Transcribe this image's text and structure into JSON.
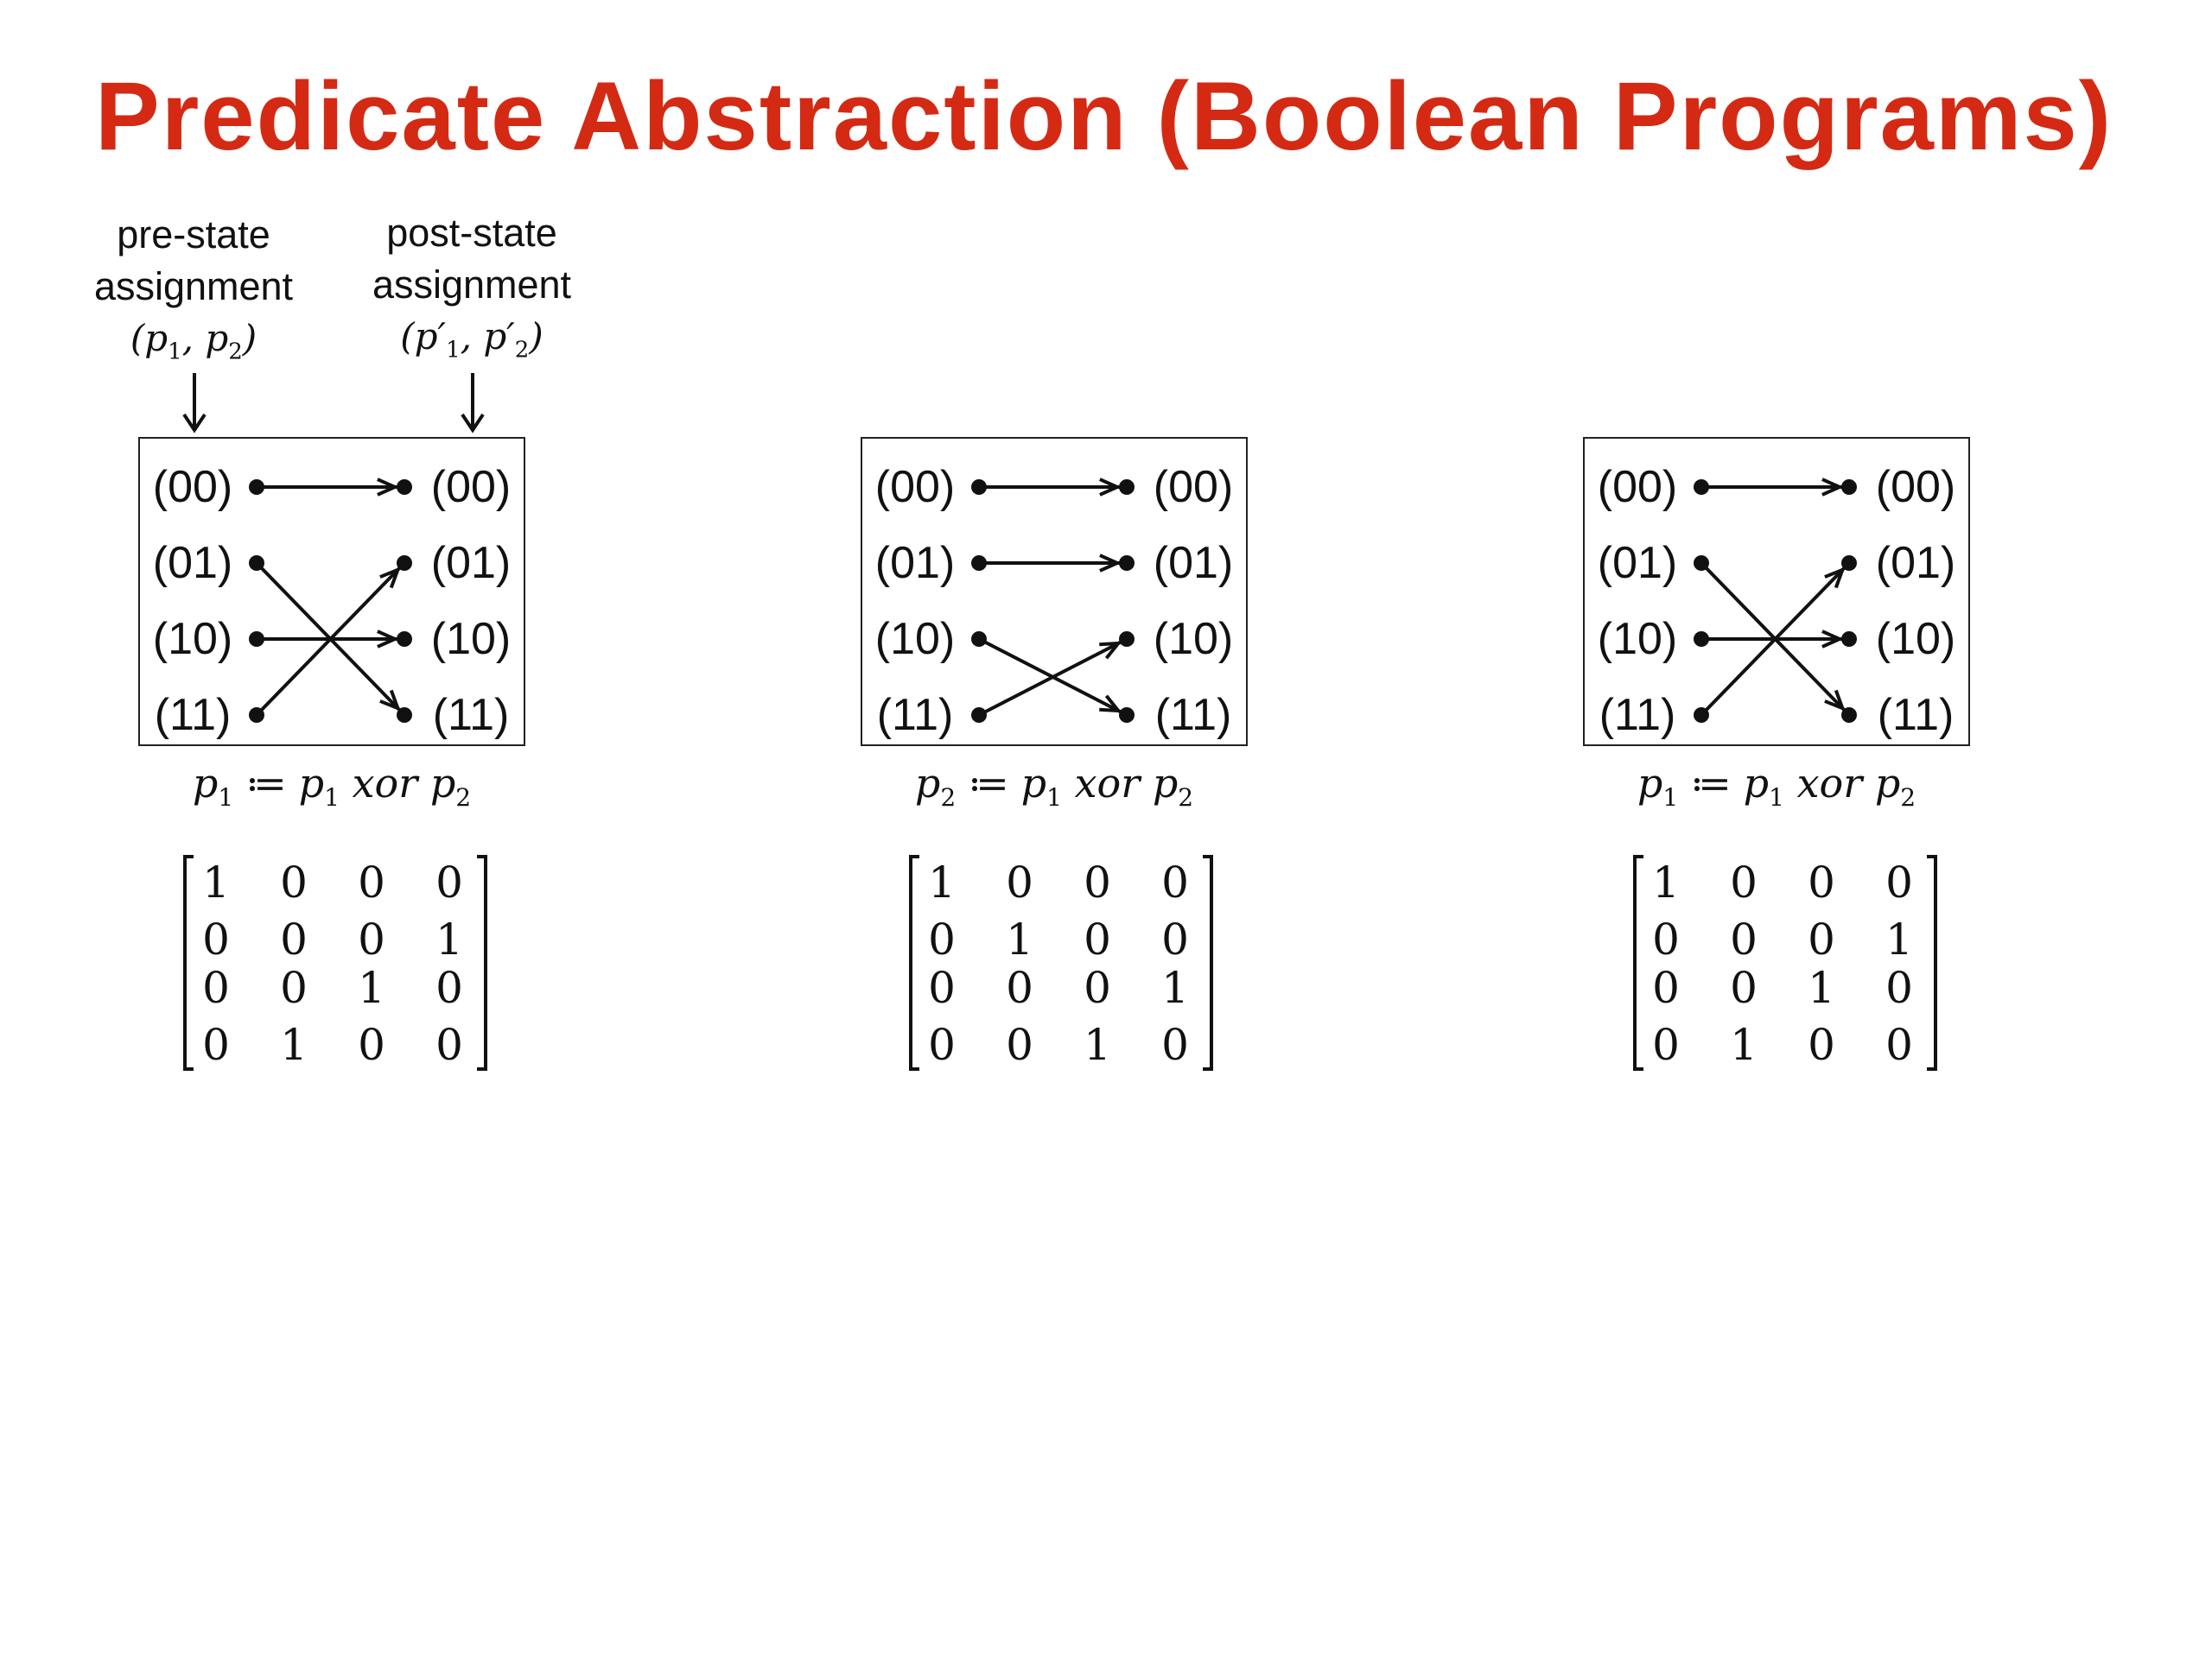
{
  "title": "Predicate Abstraction (Boolean Programs)",
  "header": {
    "pre_label": "pre-state\nassignment",
    "pre_vars": {
      "v1": "p",
      "s1": "1",
      "v2": "p",
      "s2": "2"
    },
    "post_label": "post-state\nassignment",
    "post_vars": {
      "v1": "p′",
      "s1": "1",
      "v2": "p′",
      "s2": "2"
    }
  },
  "panels": [
    {
      "states_left": [
        "(00)",
        "(01)",
        "(10)",
        "(11)"
      ],
      "states_right": [
        "(00)",
        "(01)",
        "(10)",
        "(11)"
      ],
      "transitions": [
        [
          0,
          0
        ],
        [
          1,
          3
        ],
        [
          2,
          2
        ],
        [
          3,
          1
        ]
      ],
      "equation": {
        "lhs": "p",
        "lhs_sub": "1",
        "op": "≔",
        "a": "p",
        "a_sub": "1",
        "fn": "xor",
        "b": "p",
        "b_sub": "2"
      },
      "matrix": [
        [
          "1",
          "0",
          "0",
          "0"
        ],
        [
          "0",
          "0",
          "0",
          "1"
        ],
        [
          "0",
          "0",
          "1",
          "0"
        ],
        [
          "0",
          "1",
          "0",
          "0"
        ]
      ]
    },
    {
      "states_left": [
        "(00)",
        "(01)",
        "(10)",
        "(11)"
      ],
      "states_right": [
        "(00)",
        "(01)",
        "(10)",
        "(11)"
      ],
      "transitions": [
        [
          0,
          0
        ],
        [
          1,
          1
        ],
        [
          2,
          3
        ],
        [
          3,
          2
        ]
      ],
      "equation": {
        "lhs": "p",
        "lhs_sub": "2",
        "op": "≔",
        "a": "p",
        "a_sub": "1",
        "fn": "xor",
        "b": "p",
        "b_sub": "2"
      },
      "matrix": [
        [
          "1",
          "0",
          "0",
          "0"
        ],
        [
          "0",
          "1",
          "0",
          "0"
        ],
        [
          "0",
          "0",
          "0",
          "1"
        ],
        [
          "0",
          "0",
          "1",
          "0"
        ]
      ]
    },
    {
      "states_left": [
        "(00)",
        "(01)",
        "(10)",
        "(11)"
      ],
      "states_right": [
        "(00)",
        "(01)",
        "(10)",
        "(11)"
      ],
      "transitions": [
        [
          0,
          0
        ],
        [
          1,
          3
        ],
        [
          2,
          2
        ],
        [
          3,
          1
        ]
      ],
      "equation": {
        "lhs": "p",
        "lhs_sub": "1",
        "op": "≔",
        "a": "p",
        "a_sub": "1",
        "fn": "xor",
        "b": "p",
        "b_sub": "2"
      },
      "matrix": [
        [
          "1",
          "0",
          "0",
          "0"
        ],
        [
          "0",
          "0",
          "0",
          "1"
        ],
        [
          "0",
          "0",
          "1",
          "0"
        ],
        [
          "0",
          "1",
          "0",
          "0"
        ]
      ]
    }
  ]
}
